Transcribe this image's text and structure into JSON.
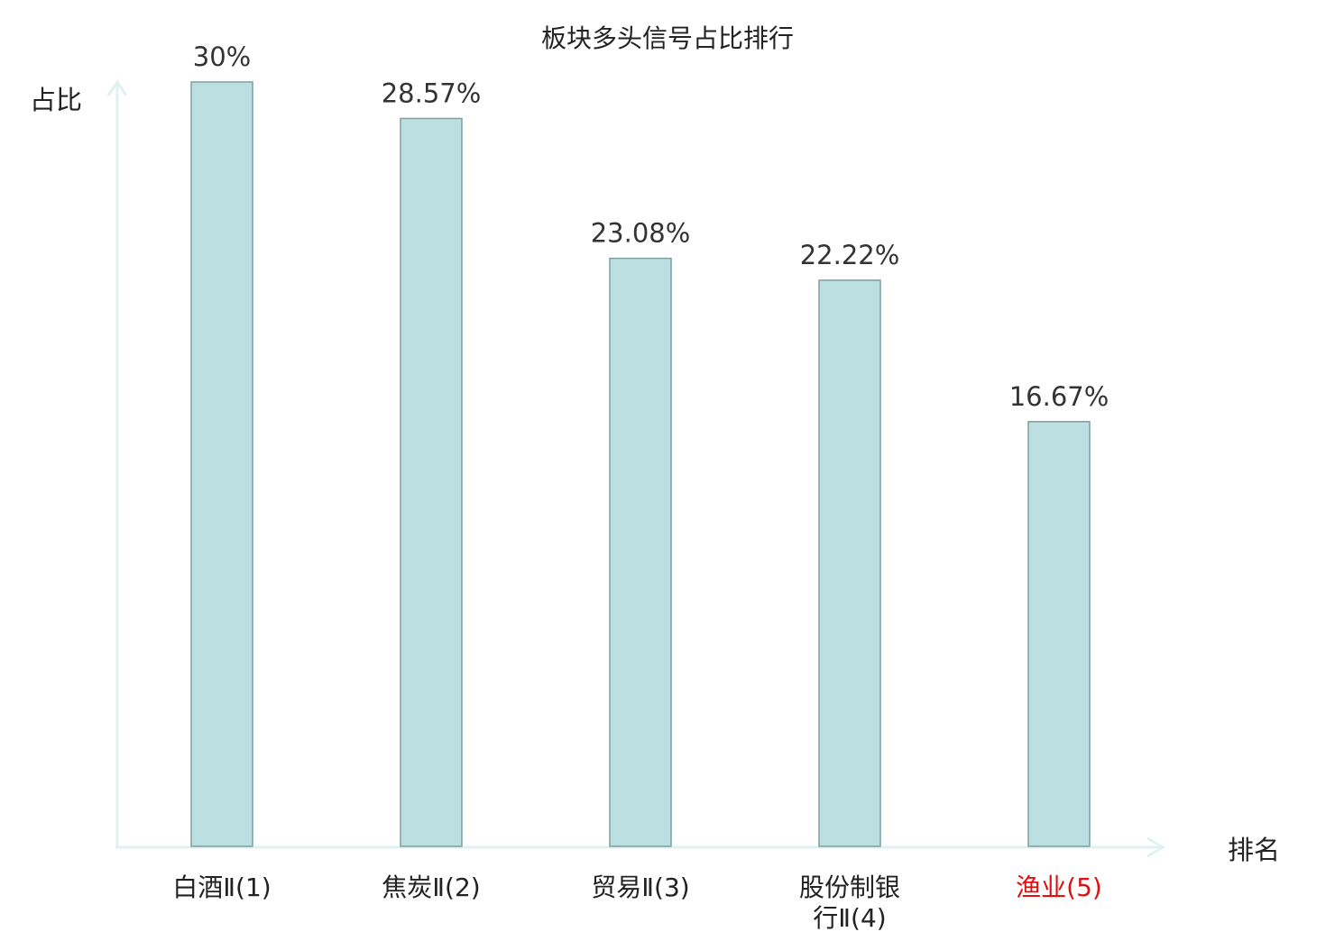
{
  "chart_data": {
    "type": "bar",
    "title": "板块多头信号占比排行",
    "ylabel": "占比",
    "xlabel": "排名",
    "categories": [
      [
        "白酒Ⅱ(1)"
      ],
      [
        "焦炭Ⅱ(2)"
      ],
      [
        "贸易Ⅱ(3)"
      ],
      [
        "股份制银",
        "行Ⅱ(4)"
      ],
      [
        "渔业(5)"
      ]
    ],
    "values": [
      30,
      28.57,
      23.08,
      22.22,
      16.67
    ],
    "value_labels": [
      "30%",
      "28.57%",
      "23.08%",
      "22.22%",
      "16.67%"
    ],
    "highlight_index": 4,
    "ylim": [
      0,
      30
    ],
    "grid": false,
    "legend": "none",
    "colors": {
      "bar_fill": "#bce0e1",
      "bar_stroke": "#7f9fa0",
      "axis": "#e0f2ef",
      "text": "#222222",
      "value_label": "#333333",
      "highlight": "#e01010"
    }
  }
}
